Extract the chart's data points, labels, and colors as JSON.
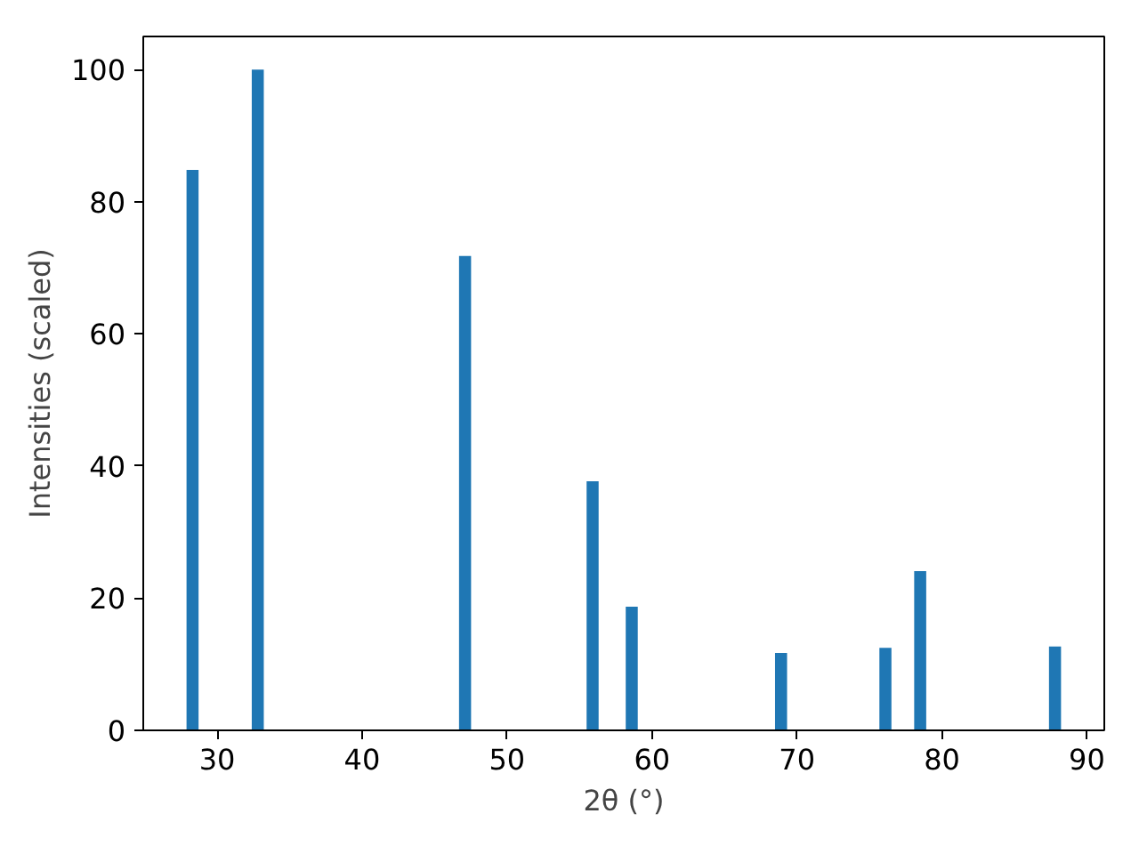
{
  "chart_data": {
    "type": "bar",
    "xlabel": "2θ (°)",
    "ylabel": "Intensities (scaled)",
    "x": [
      28.3,
      32.8,
      47.1,
      55.9,
      58.6,
      68.9,
      76.1,
      78.5,
      87.8
    ],
    "values": [
      84.8,
      100,
      71.8,
      37.7,
      18.7,
      11.7,
      12.5,
      24.1,
      12.7
    ],
    "color": "#1f77b4",
    "xlim": [
      24.9,
      91.2
    ],
    "ylim": [
      0,
      105
    ],
    "xticks": [
      30,
      40,
      50,
      60,
      70,
      80,
      90
    ],
    "yticks": [
      0,
      20,
      40,
      60,
      80,
      100
    ],
    "grid": false
  }
}
